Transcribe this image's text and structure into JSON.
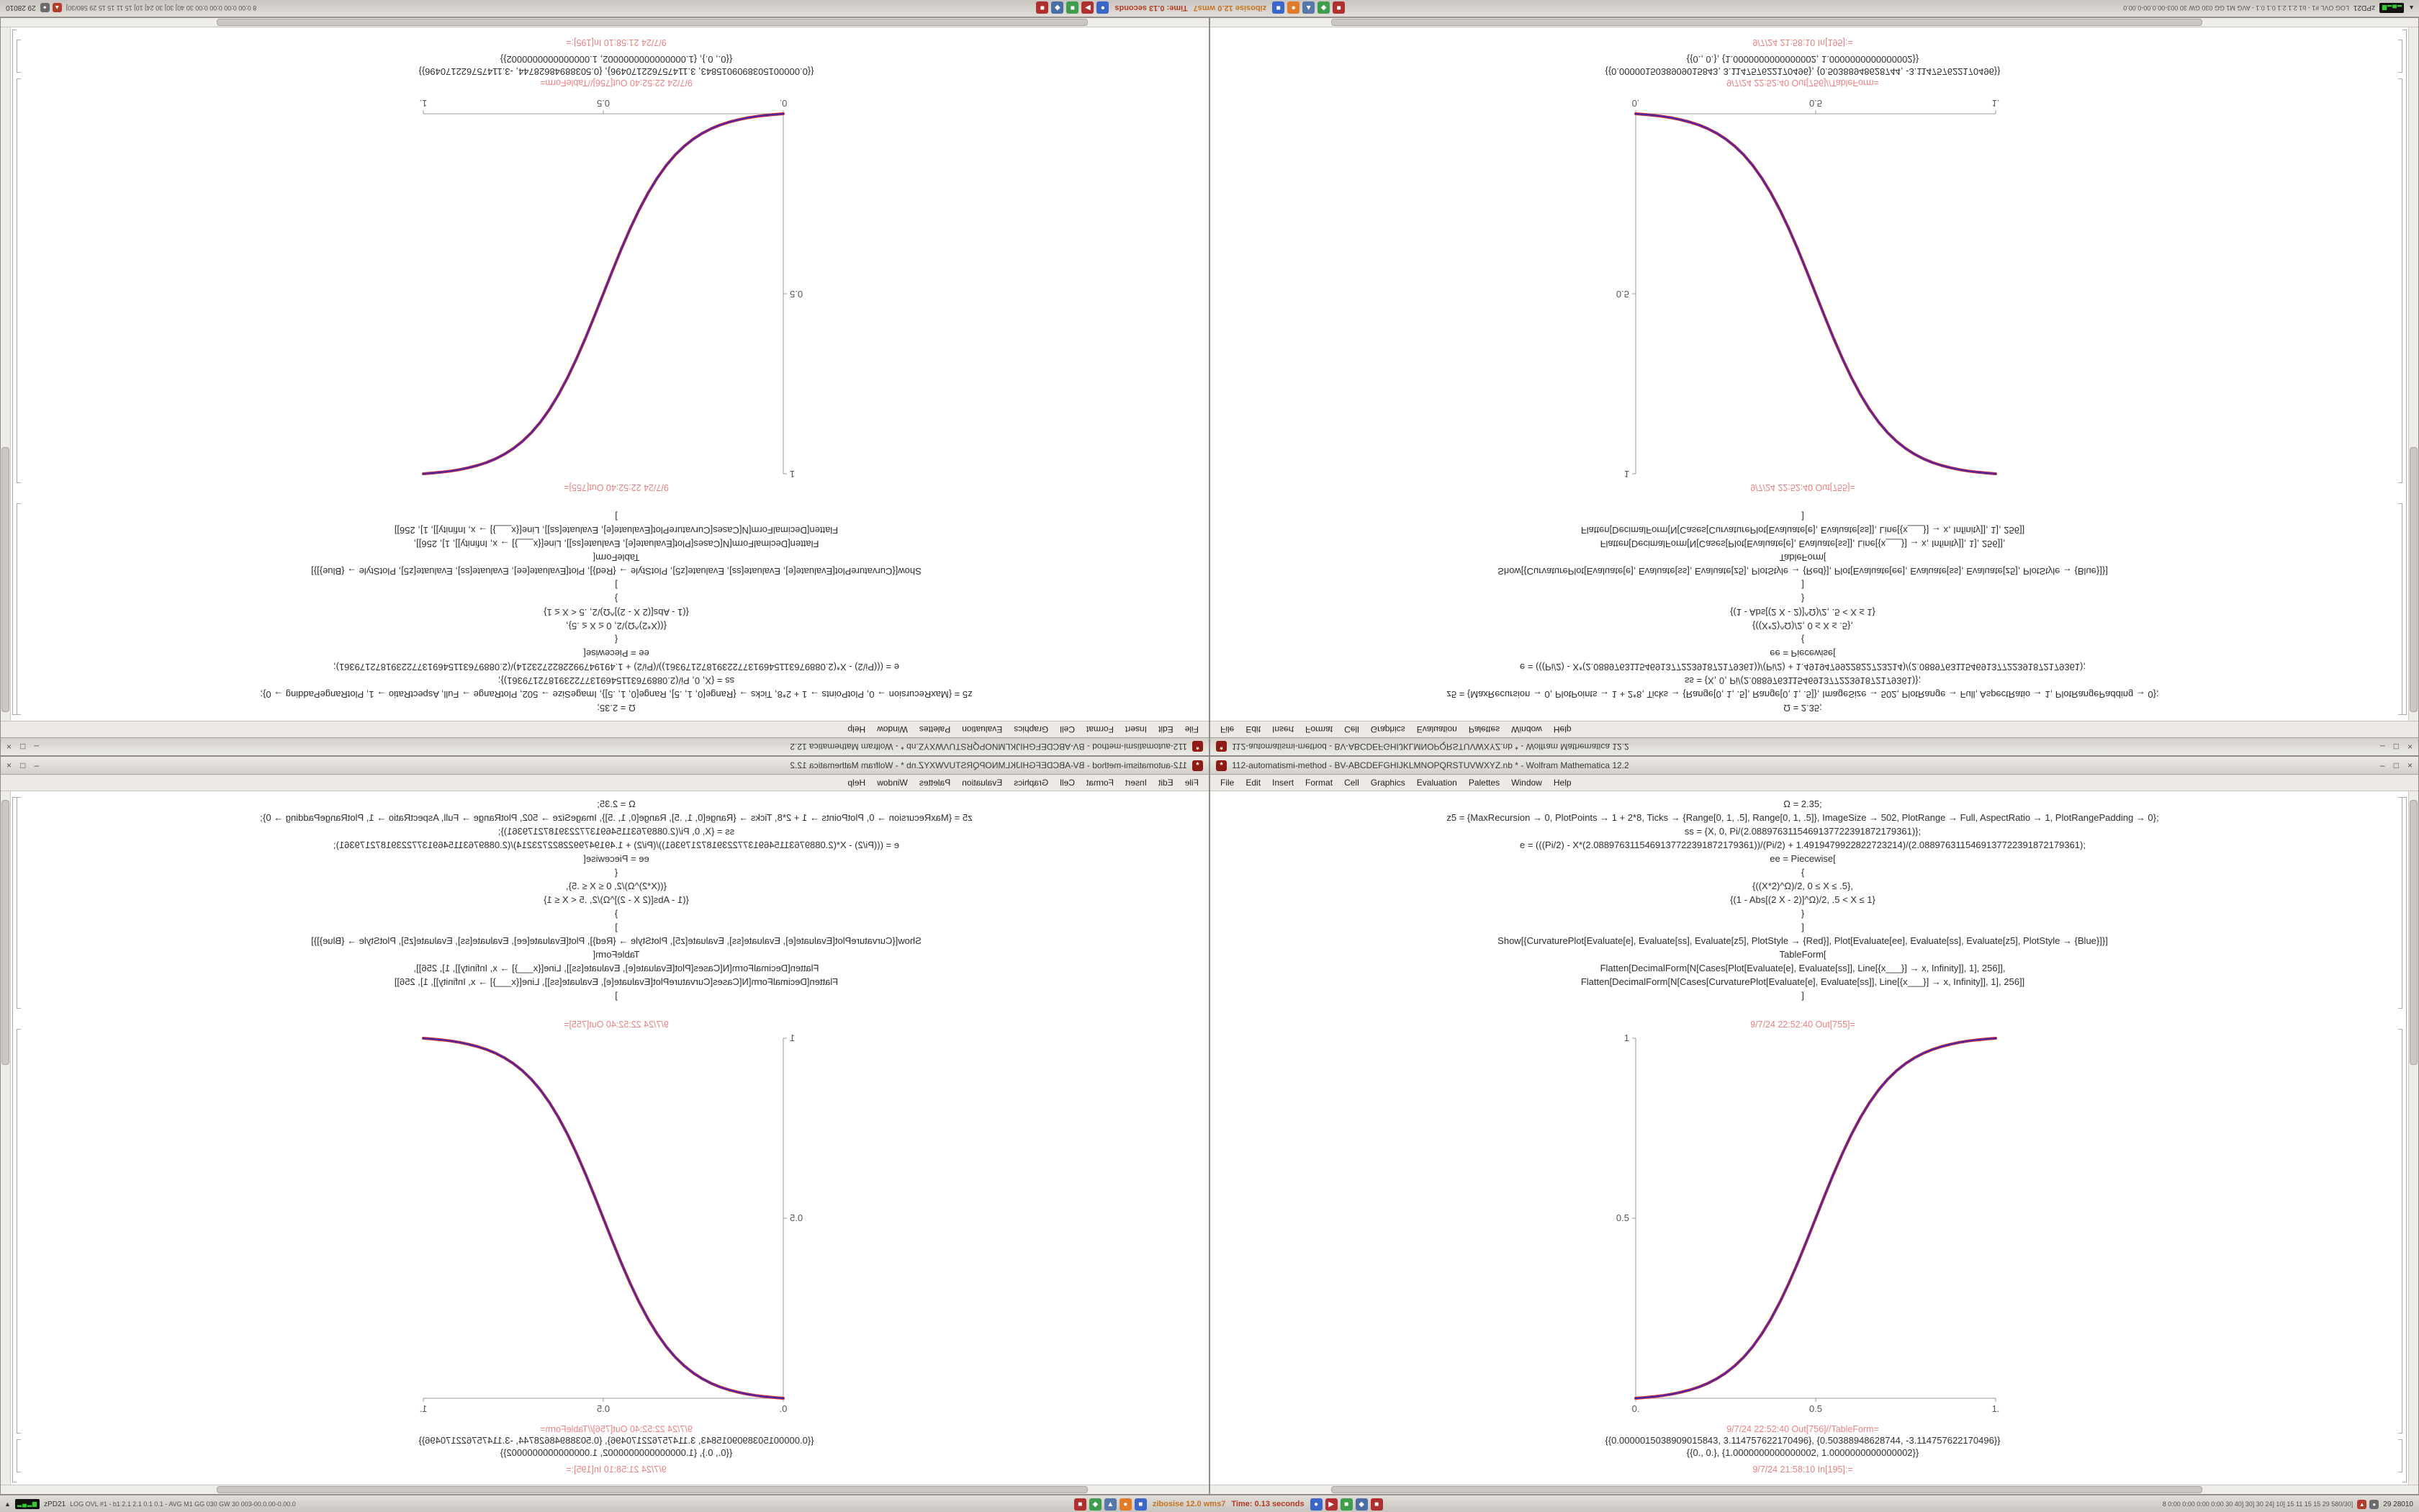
{
  "taskbar": {
    "expand_icon_glyph": "▲",
    "cpu_glyph": "▂▄▂▆",
    "monitor_label": "zPD21",
    "stats_left": "LOG OVL #1 - b1 2.1 2.1 0.1 0.1 - AVG M1 GG 030 GW 30 003-00.0.00-0.00.0",
    "app_label": "zibosise 12.0 wms7",
    "time_label": "Time: 0.13 seconds",
    "stats_right": "8 0:00 0:00 0:00 0:00 30 40] 30] 30 24] 10] 15 11 15 15 29 580/30]",
    "clock": "29 28010",
    "icons_left": [
      {
        "name": "app-icon-terminal",
        "color": "#b03030",
        "glyph": "■"
      },
      {
        "name": "app-icon-files",
        "color": "#3f9e4d",
        "glyph": "◆"
      },
      {
        "name": "app-icon-editor",
        "color": "#5577aa",
        "glyph": "▲"
      },
      {
        "name": "app-icon-browser",
        "color": "#e07b2a",
        "glyph": "●"
      },
      {
        "name": "app-icon-mail",
        "color": "#3a66c8",
        "glyph": "■"
      }
    ],
    "icons_right": [
      {
        "name": "app-icon-chat",
        "color": "#3a66c8",
        "glyph": "●"
      },
      {
        "name": "app-icon-media",
        "color": "#b03030",
        "glyph": "▶"
      },
      {
        "name": "app-icon-system",
        "color": "#3f9e4d",
        "glyph": "■"
      },
      {
        "name": "app-icon-docs",
        "color": "#4a6fa5",
        "glyph": "◆"
      },
      {
        "name": "app-icon-stop",
        "color": "#b03030",
        "glyph": "■"
      }
    ],
    "tray_icons": [
      {
        "name": "tray-network-icon",
        "color": "#b23b2e",
        "glyph": "▲"
      },
      {
        "name": "tray-volume-icon",
        "color": "#6b6b6b",
        "glyph": "●"
      }
    ]
  },
  "window": {
    "title": "112-automatismi-method - BV-ABCDEFGHIJKLMNOPQRSTUVWXYZ.nb * - Wolfram Mathematica 12.2",
    "window_icon_glyph": "*",
    "menu": [
      "File",
      "Edit",
      "Insert",
      "Format",
      "Cell",
      "Graphics",
      "Evaluation",
      "Palettes",
      "Window",
      "Help"
    ],
    "menu_circle_glyph": "+",
    "controls": {
      "minimize": "–",
      "maximize": "□",
      "close": "×"
    },
    "cells": {
      "input_lines": [
        "Ω = 2.35;",
        "z5 = {MaxRecursion → 0, PlotPoints → 1 + 2*8, Ticks → {Range[0, 1, .5], Range[0, 1, .5]}, ImageSize → 502, PlotRange → Full, AspectRatio → 1, PlotRangePadding → 0};",
        "ss = {X, 0, Pi/(2.0889763115469137722391872179361)};",
        "e = (((Pi/2) - X*(2.0889763115469137722391872179361))/(Pi/2) + 1.4919479922822723214)/(2.0889763115469137722391872179361);",
        "ee = Piecewise[",
        "{",
        "{((X*2)^Ω)/2, 0 ≤ X ≤ .5},",
        "{(1 - Abs[(2 X - 2)]^Ω)/2, .5 < X ≤ 1}",
        "}",
        "]",
        "Show[{CurvaturePlot[Evaluate[e], Evaluate[ss], Evaluate[z5], PlotStyle → {Red}], Plot[Evaluate[ee], Evaluate[ss], Evaluate[z5], PlotStyle → {Blue}]}]",
        "TableForm[",
        "Flatten[DecimalForm[N[Cases[Plot[Evaluate[e], Evaluate[ss]], Line[{x___}] → x, Infinity]], 1], 256]],",
        "Flatten[DecimalForm[N[Cases[CurvaturePlot[Evaluate[e], Evaluate[ss]], Line[{x___}] → x, Infinity]], 1], 256]]",
        "]"
      ],
      "out1_label": "9/7/24 22:52:40 Out[755]=",
      "out2_label": "9/7/24 22:52:40 Out[756]//TableForm=",
      "out2_lines": [
        "{{0.0000015038909015843, 3.114757622170496}, {0.50388948628744, -3.114757622170496}}",
        "{{0., 0.}, {1.0000000000000002, 1.0000000000000002}}"
      ],
      "bottom_label": "9/7/24 21:58:10 In[195]:="
    }
  },
  "chart_data": {
    "type": "line",
    "title": "",
    "xlabel": "",
    "ylabel": "",
    "xlim": [
      0,
      1
    ],
    "ylim": [
      0,
      1
    ],
    "xticks": {
      "values": [
        0,
        0.5,
        1
      ],
      "labels": [
        "0.",
        "0.5",
        "1."
      ]
    },
    "yticks": {
      "values": [
        0.5,
        1
      ],
      "labels": [
        "0.5",
        "1"
      ]
    },
    "image_size": 500,
    "aspect_ratio": 1,
    "axes_color": "#999999",
    "grid": false,
    "legend": "none",
    "x": [
      0,
      0.025,
      0.05,
      0.075,
      0.1,
      0.125,
      0.15,
      0.175,
      0.2,
      0.225,
      0.25,
      0.275,
      0.3,
      0.325,
      0.35,
      0.375,
      0.4,
      0.425,
      0.45,
      0.475,
      0.5,
      0.525,
      0.55,
      0.575,
      0.6,
      0.625,
      0.65,
      0.675,
      0.7,
      0.725,
      0.75,
      0.775,
      0.8,
      0.825,
      0.85,
      0.875,
      0.9,
      0.925,
      0.95,
      0.975,
      1
    ],
    "series": [
      {
        "name": "CurvaturePlot e (Red)",
        "color": "#d02020",
        "y": [
          0,
          0.00191,
          0.00435,
          0.00747,
          0.01145,
          0.01651,
          0.02293,
          0.03105,
          0.04129,
          0.05412,
          0.0701,
          0.08986,
          0.11404,
          0.14327,
          0.17812,
          0.21894,
          0.26581,
          0.31839,
          0.37588,
          0.43698,
          0.5,
          0.56302,
          0.62412,
          0.68161,
          0.73419,
          0.78106,
          0.82188,
          0.85673,
          0.88596,
          0.91014,
          0.9299,
          0.94588,
          0.95871,
          0.96895,
          0.97707,
          0.98349,
          0.98855,
          0.99253,
          0.99565,
          0.99809,
          1
        ]
      },
      {
        "name": "Plot ee (Blue)",
        "color": "#2828cc",
        "y": [
          0,
          0.00191,
          0.00435,
          0.00747,
          0.01145,
          0.01651,
          0.02293,
          0.03105,
          0.04129,
          0.05412,
          0.0701,
          0.08986,
          0.11404,
          0.14327,
          0.17812,
          0.21894,
          0.26581,
          0.31839,
          0.37588,
          0.43698,
          0.5,
          0.56302,
          0.62412,
          0.68161,
          0.73419,
          0.78106,
          0.82188,
          0.85673,
          0.88596,
          0.91014,
          0.9299,
          0.94588,
          0.95871,
          0.96895,
          0.97707,
          0.98349,
          0.98855,
          0.99253,
          0.99565,
          0.99809,
          1
        ]
      }
    ]
  }
}
